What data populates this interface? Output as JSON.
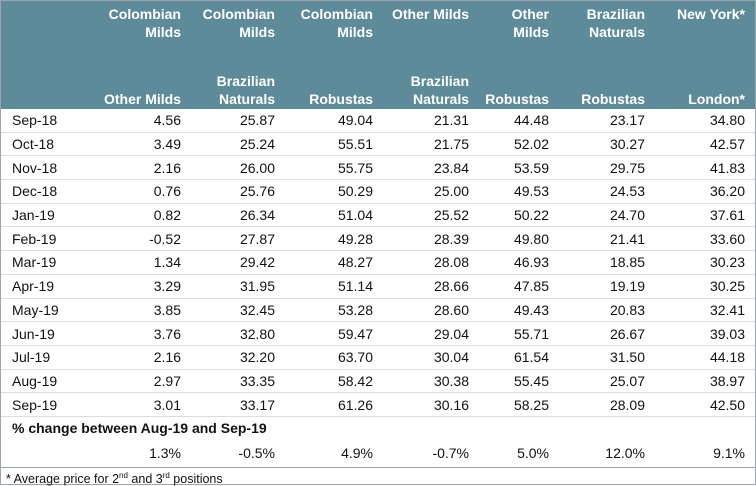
{
  "header_top": [
    "",
    "Colombian Milds",
    "Colombian Milds",
    "Colombian Milds",
    "Other Milds",
    "Other Milds",
    "Brazilian Naturals",
    "New York*"
  ],
  "header_bottom": [
    "",
    "Other Milds",
    "Brazilian Naturals",
    "Robustas",
    "Brazilian Naturals",
    "Robustas",
    "Robustas",
    "London*"
  ],
  "rows": [
    {
      "month": "Sep-18",
      "values": [
        "4.56",
        "25.87",
        "49.04",
        "21.31",
        "44.48",
        "23.17",
        "34.80"
      ]
    },
    {
      "month": "Oct-18",
      "values": [
        "3.49",
        "25.24",
        "55.51",
        "21.75",
        "52.02",
        "30.27",
        "42.57"
      ]
    },
    {
      "month": "Nov-18",
      "values": [
        "2.16",
        "26.00",
        "55.75",
        "23.84",
        "53.59",
        "29.75",
        "41.83"
      ]
    },
    {
      "month": "Dec-18",
      "values": [
        "0.76",
        "25.76",
        "50.29",
        "25.00",
        "49.53",
        "24.53",
        "36.20"
      ]
    },
    {
      "month": "Jan-19",
      "values": [
        "0.82",
        "26.34",
        "51.04",
        "25.52",
        "50.22",
        "24.70",
        "37.61"
      ]
    },
    {
      "month": "Feb-19",
      "values": [
        "-0.52",
        "27.87",
        "49.28",
        "28.39",
        "49.80",
        "21.41",
        "33.60"
      ]
    },
    {
      "month": "Mar-19",
      "values": [
        "1.34",
        "29.42",
        "48.27",
        "28.08",
        "46.93",
        "18.85",
        "30.23"
      ]
    },
    {
      "month": "Apr-19",
      "values": [
        "3.29",
        "31.95",
        "51.14",
        "28.66",
        "47.85",
        "19.19",
        "30.25"
      ]
    },
    {
      "month": "May-19",
      "values": [
        "3.85",
        "32.45",
        "53.28",
        "28.60",
        "49.43",
        "20.83",
        "32.41"
      ]
    },
    {
      "month": "Jun-19",
      "values": [
        "3.76",
        "32.80",
        "59.47",
        "29.04",
        "55.71",
        "26.67",
        "39.03"
      ]
    },
    {
      "month": "Jul-19",
      "values": [
        "2.16",
        "32.20",
        "63.70",
        "30.04",
        "61.54",
        "31.50",
        "44.18"
      ]
    },
    {
      "month": "Aug-19",
      "values": [
        "2.97",
        "33.35",
        "58.42",
        "30.38",
        "55.45",
        "25.07",
        "38.97"
      ]
    },
    {
      "month": "Sep-19",
      "values": [
        "3.01",
        "33.17",
        "61.26",
        "30.16",
        "58.25",
        "28.09",
        "42.50"
      ]
    }
  ],
  "change_label": "% change between Aug-19 and Sep-19",
  "change_values": [
    "1.3%",
    "-0.5%",
    "4.9%",
    "-0.7%",
    "5.0%",
    "12.0%",
    "9.1%"
  ],
  "footnote": {
    "prefix": "* Average price for 2",
    "sup1": "nd",
    "middle": " and 3",
    "sup2": "rd",
    "suffix": " positions"
  },
  "colors": {
    "header_bg": "#5e8b9a",
    "header_text": "#ffffff"
  }
}
